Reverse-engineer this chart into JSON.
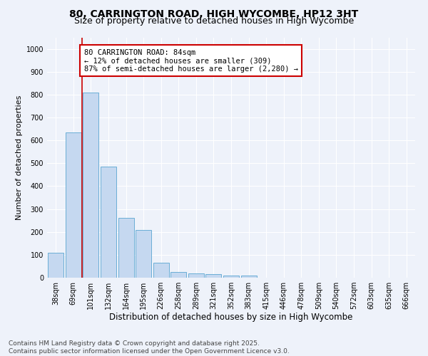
{
  "title1": "80, CARRINGTON ROAD, HIGH WYCOMBE, HP12 3HT",
  "title2": "Size of property relative to detached houses in High Wycombe",
  "xlabel": "Distribution of detached houses by size in High Wycombe",
  "ylabel": "Number of detached properties",
  "categories": [
    "38sqm",
    "69sqm",
    "101sqm",
    "132sqm",
    "164sqm",
    "195sqm",
    "226sqm",
    "258sqm",
    "289sqm",
    "321sqm",
    "352sqm",
    "383sqm",
    "415sqm",
    "446sqm",
    "478sqm",
    "509sqm",
    "540sqm",
    "572sqm",
    "603sqm",
    "635sqm",
    "666sqm"
  ],
  "values": [
    110,
    635,
    810,
    485,
    260,
    210,
    65,
    25,
    20,
    15,
    10,
    8,
    0,
    0,
    0,
    0,
    0,
    0,
    0,
    0,
    0
  ],
  "bar_color": "#c5d8f0",
  "bar_edgecolor": "#6aaed6",
  "vline_x": 1.5,
  "vline_color": "#cc0000",
  "annotation_text": "80 CARRINGTON ROAD: 84sqm\n← 12% of detached houses are smaller (309)\n87% of semi-detached houses are larger (2,280) →",
  "annotation_box_edgecolor": "#cc0000",
  "annotation_box_facecolor": "#ffffff",
  "ylim": [
    0,
    1050
  ],
  "yticks": [
    0,
    100,
    200,
    300,
    400,
    500,
    600,
    700,
    800,
    900,
    1000
  ],
  "background_color": "#eef2fa",
  "footer_text": "Contains HM Land Registry data © Crown copyright and database right 2025.\nContains public sector information licensed under the Open Government Licence v3.0.",
  "title1_fontsize": 10,
  "title2_fontsize": 9,
  "xlabel_fontsize": 8.5,
  "ylabel_fontsize": 8,
  "tick_fontsize": 7,
  "annotation_fontsize": 7.5,
  "footer_fontsize": 6.5
}
